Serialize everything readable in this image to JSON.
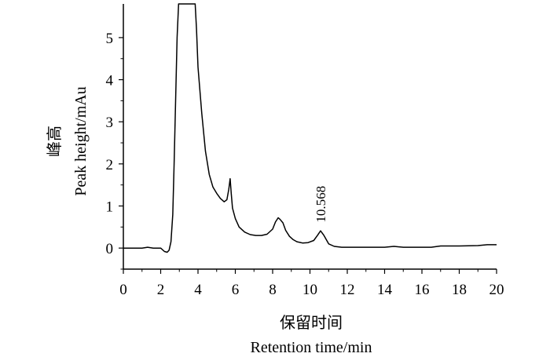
{
  "chart_data": {
    "type": "line",
    "title": "",
    "xlabel_cn": "保留时间",
    "xlabel": "Retention time/min",
    "ylabel_cn": "峰高",
    "ylabel": "Peak height/mAu",
    "xlim": [
      0,
      20
    ],
    "ylim": [
      -0.5,
      5.8
    ],
    "xticks": [
      0,
      2,
      4,
      6,
      8,
      10,
      12,
      14,
      16,
      18,
      20
    ],
    "yticks": [
      0,
      1,
      2,
      3,
      4,
      5
    ],
    "grid": false,
    "annotations": [
      {
        "text": "10.568",
        "x": 10.57,
        "y": 0.42
      }
    ],
    "series": [
      {
        "x": [
          0.0,
          0.5,
          1.0,
          1.3,
          1.6,
          2.0,
          2.2,
          2.35,
          2.45,
          2.55,
          2.65,
          2.72,
          2.8,
          2.88,
          2.96,
          3.0,
          3.5,
          3.85,
          3.92,
          4.0,
          4.2,
          4.4,
          4.6,
          4.8,
          5.0,
          5.2,
          5.4,
          5.55,
          5.65,
          5.72,
          5.78,
          5.85,
          6.0,
          6.2,
          6.5,
          6.8,
          7.1,
          7.4,
          7.7,
          8.0,
          8.15,
          8.3,
          8.4,
          8.55,
          8.7,
          8.9,
          9.1,
          9.3,
          9.6,
          9.9,
          10.2,
          10.4,
          10.57,
          10.75,
          11.0,
          11.3,
          11.7,
          12.0,
          13.0,
          14.0,
          14.5,
          15.0,
          16.0,
          16.5,
          17.0,
          17.5,
          18.0,
          19.0,
          19.5,
          20.0
        ],
        "y": [
          0.0,
          0.0,
          0.0,
          0.02,
          0.0,
          0.0,
          -0.08,
          -0.1,
          -0.05,
          0.15,
          0.8,
          2.0,
          3.5,
          5.0,
          5.8,
          5.8,
          5.8,
          5.8,
          5.2,
          4.3,
          3.2,
          2.3,
          1.75,
          1.45,
          1.3,
          1.18,
          1.1,
          1.15,
          1.4,
          1.65,
          1.3,
          0.95,
          0.7,
          0.5,
          0.38,
          0.32,
          0.3,
          0.3,
          0.33,
          0.45,
          0.62,
          0.72,
          0.68,
          0.6,
          0.42,
          0.28,
          0.2,
          0.15,
          0.12,
          0.13,
          0.18,
          0.3,
          0.41,
          0.3,
          0.1,
          0.04,
          0.02,
          0.02,
          0.02,
          0.02,
          0.04,
          0.02,
          0.02,
          0.02,
          0.05,
          0.05,
          0.05,
          0.06,
          0.08,
          0.08
        ]
      }
    ]
  }
}
